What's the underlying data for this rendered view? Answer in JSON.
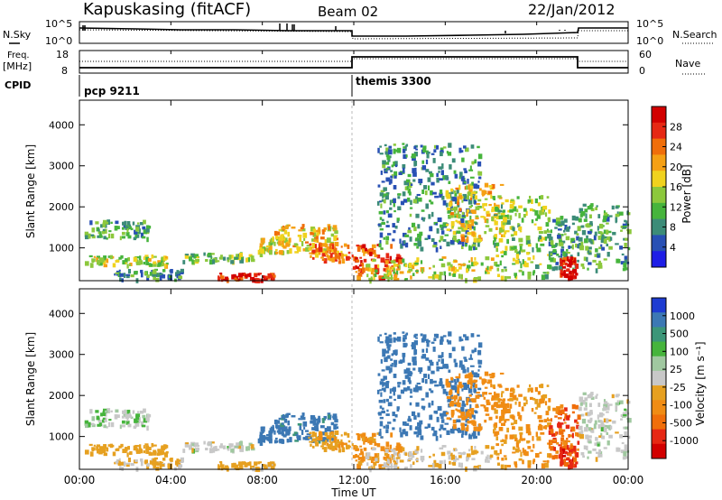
{
  "header": {
    "station": "Kapuskasing (fitACF)",
    "beam": "Beam 02",
    "date": "22/Jan/2012"
  },
  "sky_panel": {
    "left_label": "N.Sky",
    "right_label": "N.Search",
    "left_ticks": [
      "10^5",
      "10^0"
    ],
    "right_ticks": [
      "10^5",
      "10^0"
    ]
  },
  "freq_panel": {
    "left_label_1": "Freq.",
    "left_label_2": "[MHz]",
    "left_ticks": [
      "18",
      "8"
    ],
    "right_label": "Nave",
    "right_ticks": [
      "60",
      "0"
    ]
  },
  "cpid_panel": {
    "label": "CPID",
    "entries": [
      {
        "name": "pcp 9211",
        "start": 0
      },
      {
        "name": "themis 3300",
        "start": 12
      }
    ]
  },
  "x_axis": {
    "title": "Time UT",
    "ticks": [
      "00:00",
      "04:00",
      "08:00",
      "12:00",
      "16:00",
      "20:00",
      "00:00"
    ]
  },
  "power_panel": {
    "y_label": "Slant Range [km]",
    "y_ticks": [
      "1000",
      "2000",
      "3000",
      "4000"
    ],
    "colorbar_label": "Power [dB]",
    "colorbar_ticks": [
      "28",
      "24",
      "20",
      "16",
      "12",
      "8",
      "4"
    ]
  },
  "velocity_panel": {
    "y_label": "Slant Range [km]",
    "y_ticks": [
      "1000",
      "2000",
      "3000",
      "4000"
    ],
    "colorbar_label": "Velocity [m s⁻¹]",
    "colorbar_ticks": [
      "1000",
      "500",
      "100",
      "25",
      "-25",
      "-100",
      "-500",
      "-1000"
    ]
  },
  "chart_data": {
    "type": "heatmap",
    "xlabel": "Time UT",
    "ylabel": "Slant Range [km]",
    "xlim": [
      0,
      24
    ],
    "ylim": [
      200,
      4600
    ],
    "power_colorbar": {
      "label": "Power [dB]",
      "range": [
        0,
        30
      ],
      "colors": [
        "#1e1ee6",
        "#2850b4",
        "#3c8c78",
        "#46b43c",
        "#8cc83c",
        "#f0d21e",
        "#f5a014",
        "#f06e0a",
        "#e62814",
        "#d20000"
      ]
    },
    "velocity_colorbar": {
      "label": "Velocity [m s⁻¹]",
      "range": [
        -1000,
        1000
      ],
      "colors": [
        "#1e3cd2",
        "#3c78b4",
        "#3c9678",
        "#46b43c",
        "#a0c8a0",
        "#c8c8c8",
        "#e6a020",
        "#f08c14",
        "#f06e0a",
        "#e62814",
        "#d20000"
      ]
    },
    "scatter_regions": [
      {
        "t": [
          0.2,
          3.0
        ],
        "range": [
          1250,
          1700
        ],
        "power": 10,
        "velocity": 10
      },
      {
        "t": [
          0.2,
          4.0
        ],
        "range": [
          600,
          850
        ],
        "power": 14,
        "velocity": -60
      },
      {
        "t": [
          1.5,
          4.5
        ],
        "range": [
          250,
          500
        ],
        "power": 8,
        "velocity": -30
      },
      {
        "t": [
          4.5,
          7.5
        ],
        "range": [
          700,
          900
        ],
        "power": 12,
        "velocity": 0
      },
      {
        "t": [
          6.0,
          8.5
        ],
        "range": [
          250,
          400
        ],
        "power": 27,
        "velocity": -50
      },
      {
        "t": [
          7.8,
          9.2
        ],
        "range": [
          900,
          1300
        ],
        "power": 16,
        "velocity": 200
      },
      {
        "t": [
          8.5,
          11.2
        ],
        "range": [
          900,
          1600
        ],
        "power": 18,
        "velocity": 150
      },
      {
        "t": [
          10.0,
          11.8
        ],
        "range": [
          700,
          1150
        ],
        "power": 22,
        "velocity": -80
      },
      {
        "t": [
          11.9,
          14.0
        ],
        "range": [
          300,
          1100
        ],
        "power": 24,
        "velocity": -150
      },
      {
        "t": [
          12.5,
          18.0
        ],
        "range": [
          250,
          800
        ],
        "power": 15,
        "velocity": -20
      },
      {
        "t": [
          13.0,
          17.5
        ],
        "range": [
          1000,
          3600
        ],
        "power": 8,
        "velocity": 300
      },
      {
        "t": [
          16.0,
          18.5
        ],
        "range": [
          1200,
          2600
        ],
        "power": 17,
        "velocity": -200
      },
      {
        "t": [
          18.0,
          20.5
        ],
        "range": [
          300,
          2300
        ],
        "power": 13,
        "velocity": -120
      },
      {
        "t": [
          20.5,
          21.8
        ],
        "range": [
          500,
          1800
        ],
        "power": 9,
        "velocity": -400
      },
      {
        "t": [
          21.0,
          21.7
        ],
        "range": [
          300,
          800
        ],
        "power": 28,
        "velocity": -600
      },
      {
        "t": [
          21.8,
          24.0
        ],
        "range": [
          500,
          2100
        ],
        "power": 10,
        "velocity": 0
      }
    ]
  }
}
